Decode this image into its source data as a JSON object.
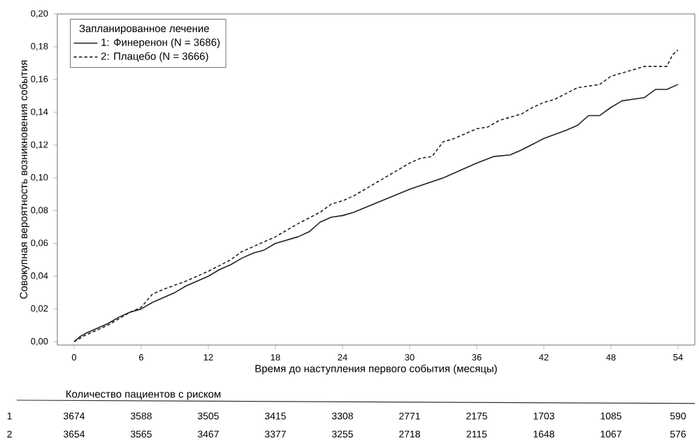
{
  "chart_data": {
    "type": "line",
    "xlabel": "Время до наступления первого события (месяцы)",
    "ylabel": "Совокупная вероятность возникновения события",
    "legend_title": "Запланированное лечение",
    "legend": "top left",
    "xlim": [
      -1.5,
      55.5
    ],
    "ylim": [
      -0.002,
      0.2
    ],
    "xticks": [
      0,
      6,
      12,
      18,
      24,
      30,
      36,
      42,
      48,
      54
    ],
    "yticks": [
      {
        "value": 0,
        "label": "0,00"
      },
      {
        "value": 0.02,
        "label": "0,02"
      },
      {
        "value": 0.04,
        "label": "0,04"
      },
      {
        "value": 0.06,
        "label": "0,06"
      },
      {
        "value": 0.08,
        "label": "0,08"
      },
      {
        "value": 0.1,
        "label": "0,10"
      },
      {
        "value": 0.12,
        "label": "0,12"
      },
      {
        "value": 0.14,
        "label": "0,14"
      },
      {
        "value": 0.16,
        "label": "0,16"
      },
      {
        "value": 0.18,
        "label": "0,18"
      },
      {
        "value": 0.2,
        "label": "0,20"
      }
    ],
    "series": [
      {
        "name": "1: Финеренон (N = 3686)",
        "color": "#222222",
        "line_style": "solid",
        "x": [
          0,
          0.5,
          1,
          2,
          3,
          4,
          5,
          6,
          7,
          8,
          9,
          10,
          11,
          12,
          13,
          14,
          15,
          16,
          17,
          18,
          19,
          20,
          21,
          22,
          23,
          24,
          25,
          30,
          33,
          36,
          37.5,
          39,
          40,
          42,
          44,
          45,
          46,
          47,
          48,
          49,
          50,
          51,
          52,
          53,
          54
        ],
        "values": [
          0,
          0.003,
          0.005,
          0.008,
          0.011,
          0.015,
          0.018,
          0.02,
          0.024,
          0.027,
          0.03,
          0.034,
          0.037,
          0.04,
          0.044,
          0.047,
          0.051,
          0.054,
          0.056,
          0.06,
          0.062,
          0.064,
          0.067,
          0.073,
          0.076,
          0.077,
          0.079,
          0.093,
          0.1,
          0.109,
          0.113,
          0.114,
          0.117,
          0.124,
          0.129,
          0.132,
          0.138,
          0.138,
          0.143,
          0.147,
          0.148,
          0.149,
          0.154,
          0.154,
          0.157
        ]
      },
      {
        "name": "2: Плацебо (N = 3666)",
        "color": "#222222",
        "line_style": "dashed",
        "x": [
          0,
          1,
          2,
          3,
          4,
          5,
          6,
          7,
          8,
          10,
          12,
          14,
          15,
          18,
          20,
          22,
          23,
          24,
          25,
          27,
          29,
          30,
          31,
          32,
          33,
          34,
          36,
          37,
          38,
          40,
          41,
          42,
          43,
          45,
          46,
          47,
          48,
          50,
          51,
          53,
          53.5,
          54
        ],
        "values": [
          0,
          0.004,
          0.007,
          0.01,
          0.014,
          0.018,
          0.021,
          0.029,
          0.032,
          0.037,
          0.043,
          0.05,
          0.055,
          0.064,
          0.072,
          0.079,
          0.084,
          0.086,
          0.089,
          0.097,
          0.105,
          0.109,
          0.112,
          0.113,
          0.122,
          0.124,
          0.13,
          0.131,
          0.135,
          0.139,
          0.143,
          0.146,
          0.148,
          0.155,
          0.156,
          0.157,
          0.162,
          0.166,
          0.168,
          0.168,
          0.175,
          0.178
        ]
      }
    ],
    "annotations": [
      "Количество пациентов с риском",
      "1",
      "3674",
      "3588",
      "3505",
      "3415",
      "3308",
      "2771",
      "2175",
      "1703",
      "1085",
      "590",
      "2",
      "3654",
      "3565",
      "3467",
      "3377",
      "3255",
      "2718",
      "2115",
      "1648",
      "1067",
      "576"
    ]
  }
}
